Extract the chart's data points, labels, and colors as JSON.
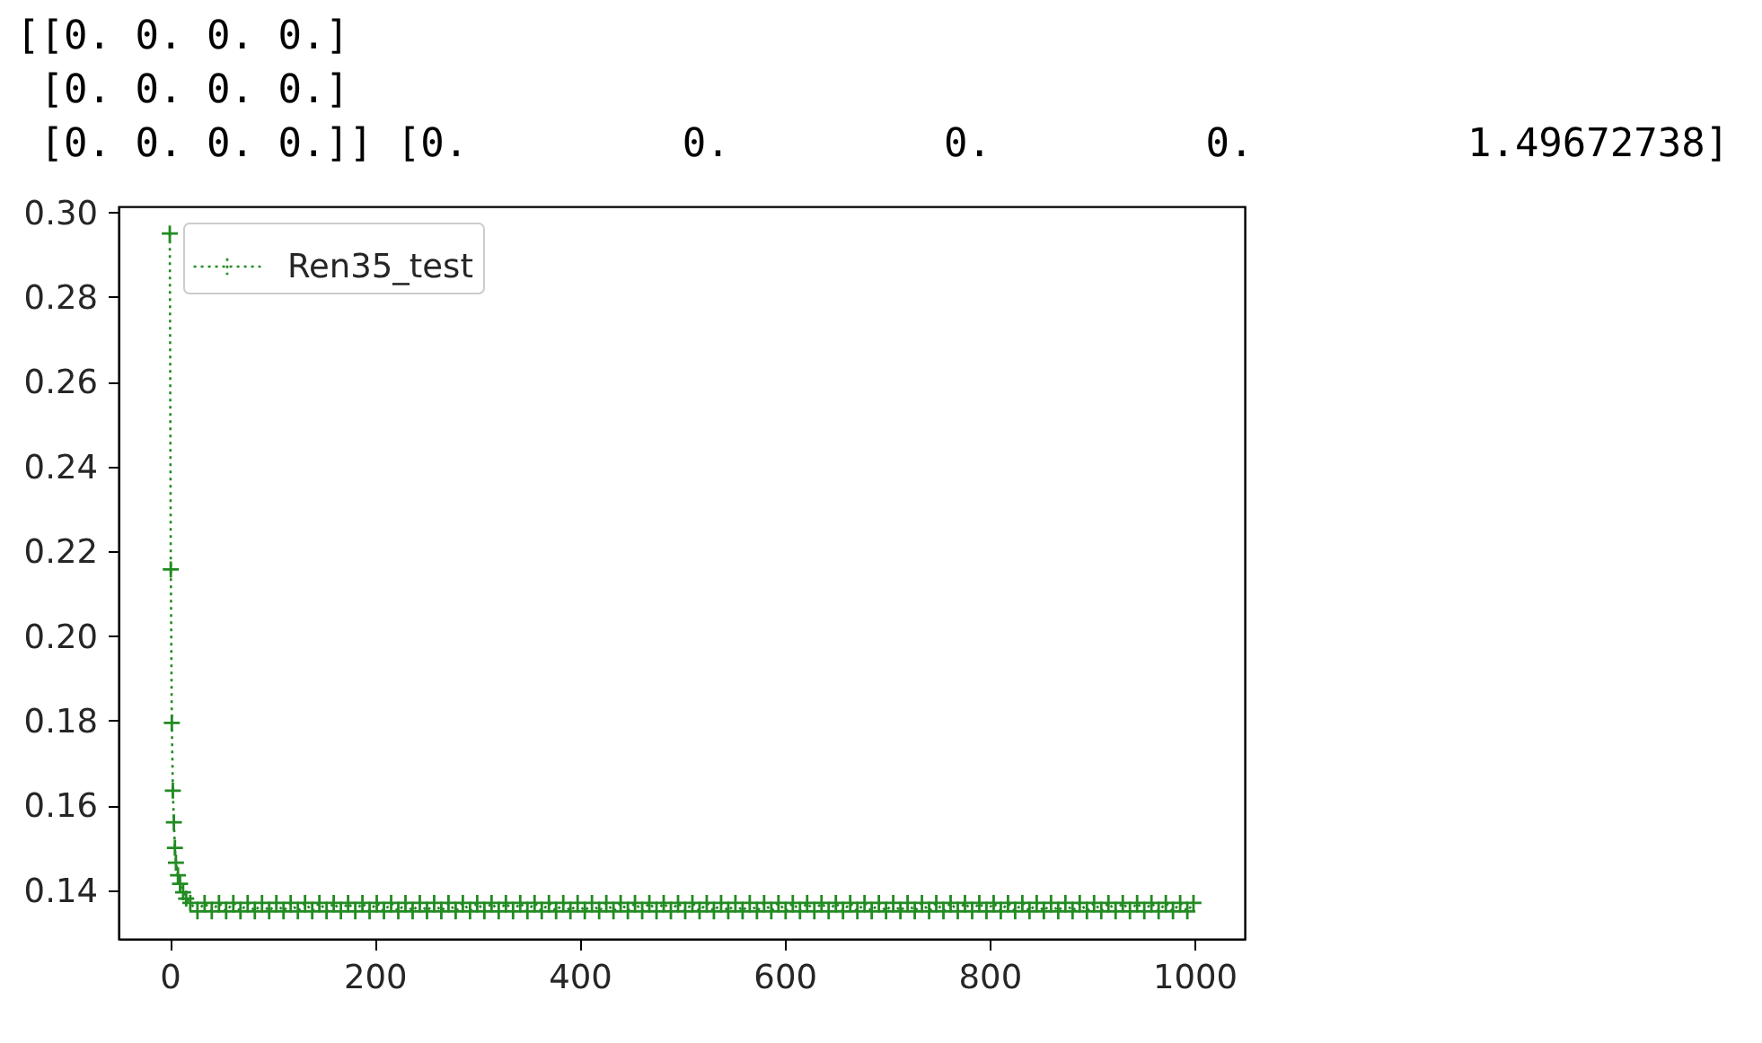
{
  "chart_data": {
    "type": "line",
    "annotations": [
      "[[0. 0. 0. 0.]",
      " [0. 0. 0. 0.]",
      " [0. 0. 0. 0.]] [0.         0.         0.         0.         1.49672738]"
    ],
    "x": [
      0,
      1,
      2,
      3,
      4,
      5,
      6,
      8,
      10,
      13,
      16,
      20,
      27,
      34,
      41,
      48,
      55,
      62,
      69,
      76,
      83,
      90,
      97,
      104,
      111,
      118,
      125,
      132,
      139,
      146,
      153,
      160,
      167,
      174,
      181,
      188,
      195,
      202,
      209,
      216,
      223,
      230,
      237,
      244,
      251,
      258,
      265,
      272,
      279,
      286,
      293,
      300,
      307,
      314,
      321,
      328,
      335,
      342,
      349,
      356,
      363,
      370,
      377,
      384,
      391,
      398,
      405,
      412,
      419,
      426,
      433,
      440,
      447,
      454,
      461,
      468,
      475,
      482,
      489,
      496,
      503,
      510,
      517,
      524,
      531,
      538,
      545,
      552,
      559,
      566,
      573,
      580,
      587,
      594,
      601,
      608,
      615,
      622,
      629,
      636,
      643,
      650,
      657,
      664,
      671,
      678,
      685,
      692,
      699,
      706,
      713,
      720,
      727,
      734,
      741,
      748,
      755,
      762,
      769,
      776,
      783,
      790,
      797,
      804,
      811,
      818,
      825,
      832,
      839,
      846,
      853,
      860,
      867,
      874,
      881,
      888,
      895,
      902,
      909,
      916,
      923,
      930,
      937,
      944,
      951,
      958,
      965,
      972,
      979,
      986,
      993,
      999
    ],
    "series": [
      {
        "name": "Ren35_test",
        "color": "#228b22",
        "values": [
          0.295,
          0.2157,
          0.1795,
          0.1635,
          0.156,
          0.15,
          0.1465,
          0.1435,
          0.1415,
          0.1395,
          0.138,
          0.137,
          0.135,
          0.137,
          0.135,
          0.137,
          0.135,
          0.137,
          0.135,
          0.137,
          0.135,
          0.137,
          0.135,
          0.137,
          0.135,
          0.137,
          0.135,
          0.137,
          0.135,
          0.137,
          0.135,
          0.137,
          0.135,
          0.137,
          0.135,
          0.137,
          0.135,
          0.137,
          0.135,
          0.137,
          0.135,
          0.137,
          0.135,
          0.137,
          0.135,
          0.137,
          0.135,
          0.137,
          0.135,
          0.137,
          0.135,
          0.137,
          0.135,
          0.137,
          0.135,
          0.137,
          0.135,
          0.137,
          0.135,
          0.137,
          0.135,
          0.137,
          0.135,
          0.137,
          0.135,
          0.137,
          0.135,
          0.137,
          0.135,
          0.137,
          0.135,
          0.137,
          0.135,
          0.137,
          0.135,
          0.137,
          0.135,
          0.137,
          0.135,
          0.137,
          0.135,
          0.137,
          0.135,
          0.137,
          0.135,
          0.137,
          0.135,
          0.137,
          0.135,
          0.137,
          0.135,
          0.137,
          0.135,
          0.137,
          0.135,
          0.137,
          0.135,
          0.137,
          0.135,
          0.137,
          0.135,
          0.137,
          0.135,
          0.137,
          0.135,
          0.137,
          0.135,
          0.137,
          0.135,
          0.137,
          0.135,
          0.137,
          0.135,
          0.137,
          0.135,
          0.137,
          0.135,
          0.137,
          0.135,
          0.137,
          0.135,
          0.137,
          0.135,
          0.137,
          0.135,
          0.137,
          0.135,
          0.137,
          0.135,
          0.137,
          0.135,
          0.137,
          0.135,
          0.137,
          0.135,
          0.137,
          0.135,
          0.137,
          0.135,
          0.137,
          0.135,
          0.137,
          0.135,
          0.137,
          0.135,
          0.137,
          0.135,
          0.137,
          0.135,
          0.137,
          0.135,
          0.137
        ]
      }
    ],
    "xlim": [
      -50,
      1049
    ],
    "ylim": [
      0.1285,
      0.3014
    ],
    "xticks": [
      0,
      200,
      400,
      600,
      800,
      1000
    ],
    "yticks": [
      0.14,
      0.16,
      0.18,
      {
        "value": 0.2,
        "label": "0.20"
      },
      0.22,
      0.24,
      0.26,
      0.28,
      {
        "value": 0.3,
        "label": "0.30"
      }
    ],
    "legend": "top left",
    "marker": "cross",
    "line_style": "dotted"
  }
}
